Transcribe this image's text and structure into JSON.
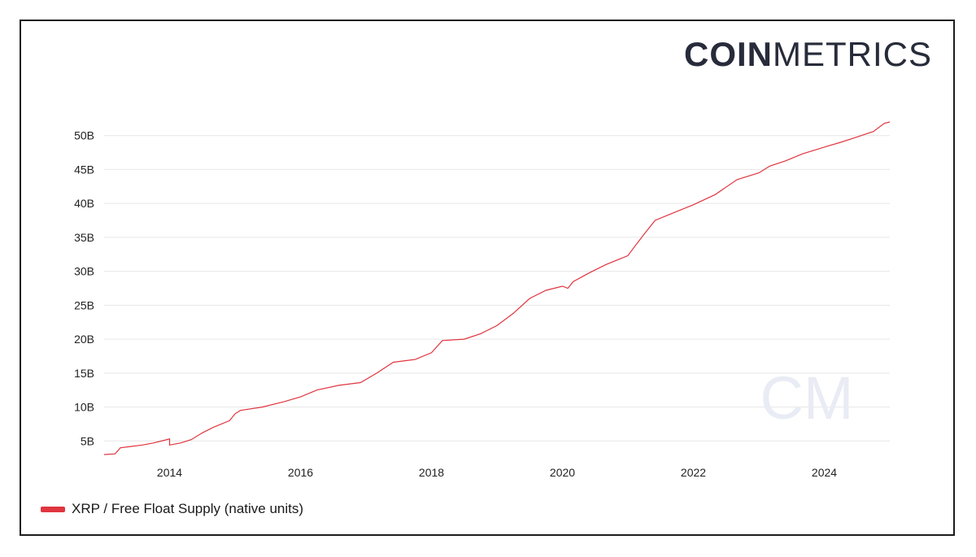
{
  "brand": {
    "bold": "COIN",
    "light": "METRICS"
  },
  "watermark": "CM",
  "colors": {
    "series": "#e0353f",
    "grid": "#e6e6e6",
    "axis_text": "#222222",
    "frame": "#1c1c1c",
    "logo": "#272b3a",
    "watermark": "#e9ecf4"
  },
  "chart_data": {
    "type": "line",
    "title": "",
    "xlabel": "",
    "ylabel": "",
    "x_ticks": [
      "2014",
      "2016",
      "2018",
      "2020",
      "2022",
      "2024"
    ],
    "y_ticks": [
      "5B",
      "10B",
      "15B",
      "20B",
      "25B",
      "30B",
      "35B",
      "40B",
      "45B",
      "50B"
    ],
    "xlim": [
      "2013-01",
      "2025-01"
    ],
    "ylim": [
      3,
      52
    ],
    "grid": "horizontal",
    "legend_position": "bottom-left",
    "series": [
      {
        "name": "XRP / Free Float Supply (native units)",
        "unit": "billions",
        "points": [
          [
            "2013-01",
            3.0
          ],
          [
            "2013-03",
            3.1
          ],
          [
            "2013-04",
            4.0
          ],
          [
            "2013-06",
            4.2
          ],
          [
            "2013-08",
            4.4
          ],
          [
            "2013-10",
            4.7
          ],
          [
            "2013-12",
            5.1
          ],
          [
            "2014-01",
            5.3
          ],
          [
            "2014-01",
            4.4
          ],
          [
            "2014-03",
            4.7
          ],
          [
            "2014-05",
            5.2
          ],
          [
            "2014-07",
            6.2
          ],
          [
            "2014-09",
            7.0
          ],
          [
            "2014-12",
            8.0
          ],
          [
            "2015-01",
            9.0
          ],
          [
            "2015-02",
            9.5
          ],
          [
            "2015-06",
            10.0
          ],
          [
            "2015-10",
            10.8
          ],
          [
            "2016-01",
            11.5
          ],
          [
            "2016-04",
            12.5
          ],
          [
            "2016-08",
            13.2
          ],
          [
            "2016-12",
            13.6
          ],
          [
            "2017-03",
            15.0
          ],
          [
            "2017-06",
            16.6
          ],
          [
            "2017-10",
            17.0
          ],
          [
            "2018-01",
            18.0
          ],
          [
            "2018-03",
            19.8
          ],
          [
            "2018-07",
            20.0
          ],
          [
            "2018-10",
            20.8
          ],
          [
            "2019-01",
            22.0
          ],
          [
            "2019-04",
            23.8
          ],
          [
            "2019-07",
            26.0
          ],
          [
            "2019-10",
            27.2
          ],
          [
            "2020-01",
            27.8
          ],
          [
            "2020-02",
            27.5
          ],
          [
            "2020-03",
            28.5
          ],
          [
            "2020-06",
            29.8
          ],
          [
            "2020-09",
            31.0
          ],
          [
            "2021-01",
            32.3
          ],
          [
            "2021-02",
            33.4
          ],
          [
            "2021-04",
            35.5
          ],
          [
            "2021-06",
            37.5
          ],
          [
            "2021-09",
            38.5
          ],
          [
            "2022-01",
            39.8
          ],
          [
            "2022-05",
            41.3
          ],
          [
            "2022-09",
            43.5
          ],
          [
            "2023-01",
            44.5
          ],
          [
            "2023-03",
            45.5
          ],
          [
            "2023-06",
            46.3
          ],
          [
            "2023-09",
            47.3
          ],
          [
            "2024-01",
            48.3
          ],
          [
            "2024-04",
            49.0
          ],
          [
            "2024-07",
            49.8
          ],
          [
            "2024-10",
            50.6
          ],
          [
            "2024-12",
            51.8
          ],
          [
            "2025-01",
            52.0
          ]
        ]
      }
    ]
  }
}
